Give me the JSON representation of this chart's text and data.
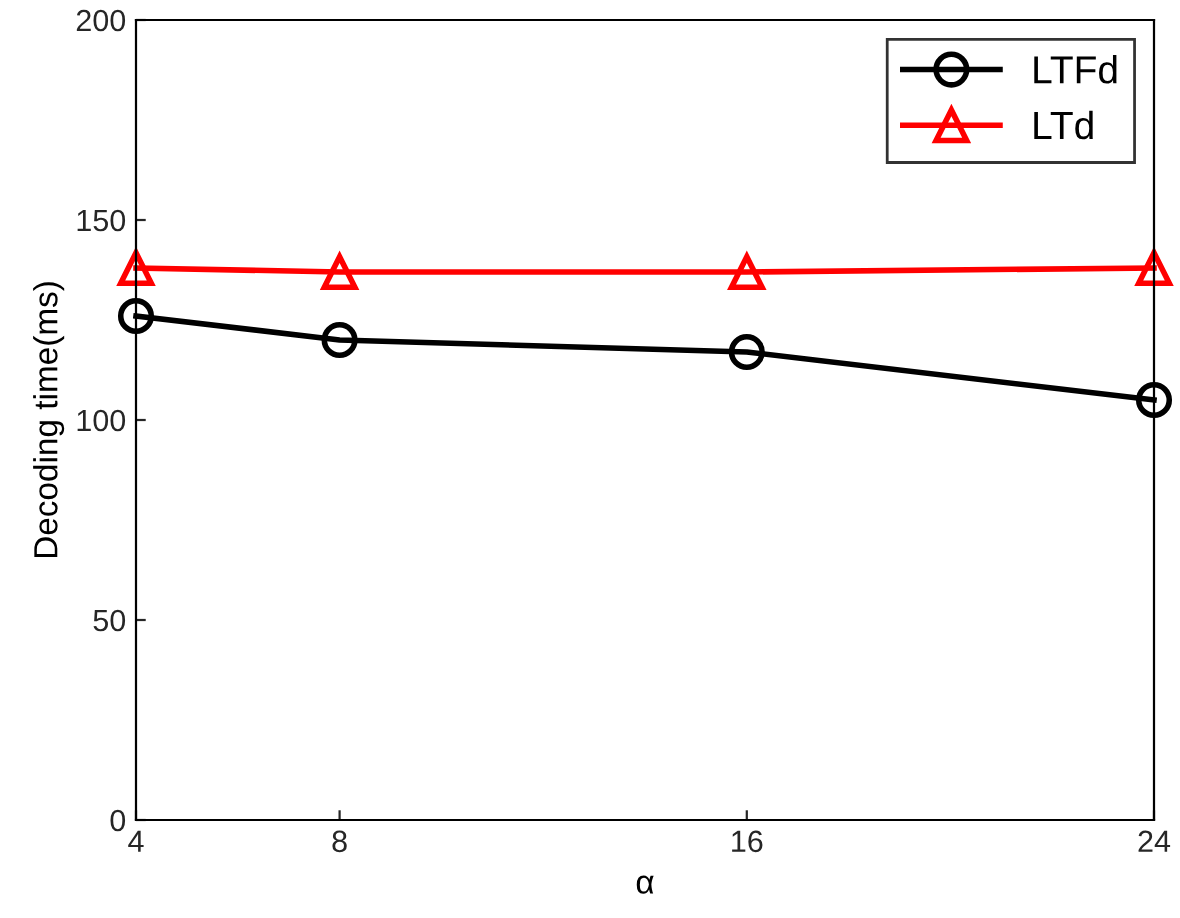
{
  "chart_data": {
    "type": "line",
    "xlabel": "α",
    "ylabel": "Decoding time(ms)",
    "x": [
      4,
      8,
      16,
      24
    ],
    "series": [
      {
        "name": "LTFd",
        "color": "#000000",
        "marker": "circle",
        "values": [
          126,
          120,
          117,
          105
        ]
      },
      {
        "name": "LTd",
        "color": "#ff0000",
        "marker": "triangle",
        "values": [
          138,
          137,
          137,
          138
        ]
      }
    ],
    "xlim": [
      4,
      24
    ],
    "xticks": [
      4,
      8,
      16,
      24
    ],
    "ylim": [
      0,
      200
    ],
    "yticks": [
      0,
      50,
      100,
      150,
      200
    ],
    "grid": false,
    "legend": "top right",
    "line_style": "solid"
  }
}
